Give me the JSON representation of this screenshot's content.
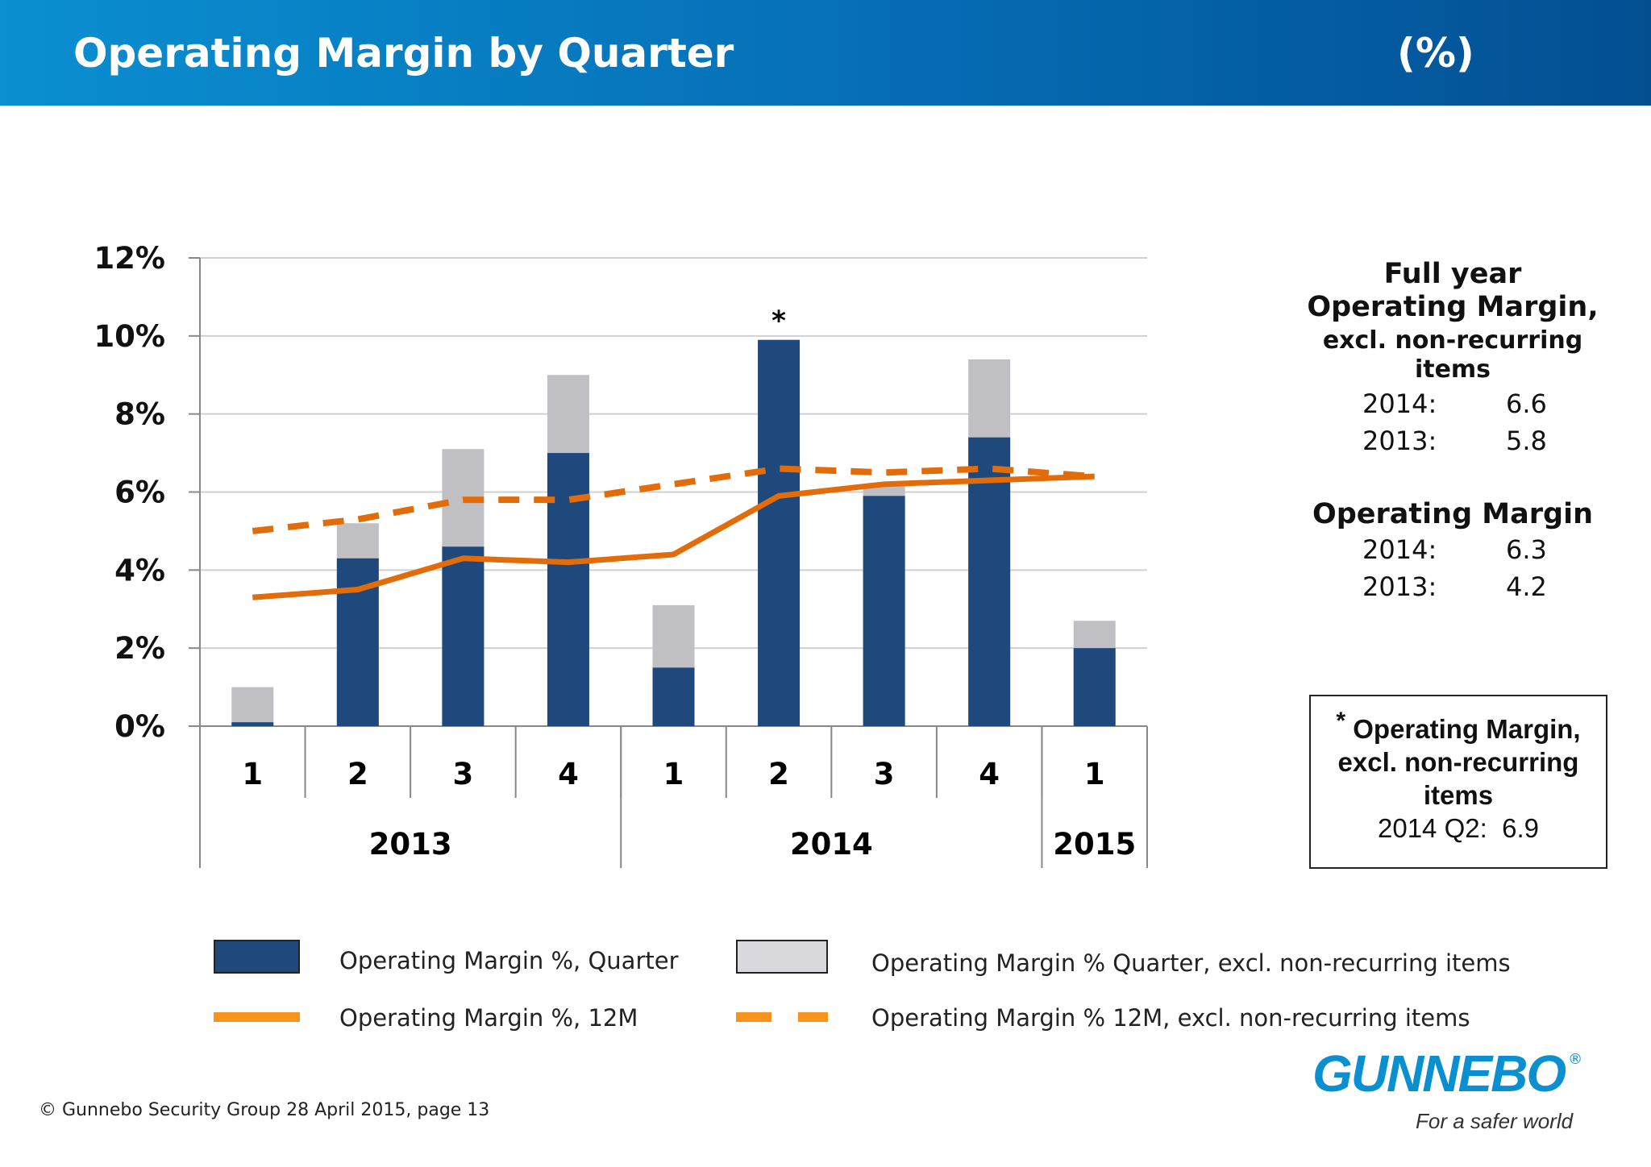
{
  "header": {
    "title": "Operating Margin by Quarter",
    "unit": "(%)"
  },
  "colors": {
    "quarter": "#1f497d",
    "quarter_excl": "#c0bfc3",
    "line_12m": "#e36c0a",
    "header": "#0670b8",
    "logo": "#0a8fd0"
  },
  "chart_data": {
    "type": "bar",
    "title": "",
    "ylabel": "",
    "xlabel": "",
    "ylim": [
      0,
      12
    ],
    "yticks": [
      "0%",
      "2%",
      "4%",
      "6%",
      "8%",
      "10%",
      "12%"
    ],
    "grid": true,
    "categories": [
      "1",
      "2",
      "3",
      "4",
      "1",
      "2",
      "3",
      "4",
      "1"
    ],
    "year_groups": [
      {
        "label": "2013",
        "count": 4
      },
      {
        "label": "2014",
        "count": 4
      },
      {
        "label": "2015",
        "count": 1
      }
    ],
    "annotation": {
      "category_index": 5,
      "text": "*"
    },
    "series": [
      {
        "name": "Operating Margin %, Quarter",
        "type": "bar",
        "values": [
          0.1,
          4.3,
          4.6,
          7.0,
          1.5,
          9.9,
          5.9,
          7.4,
          2.0
        ]
      },
      {
        "name": "Operating Margin % Quarter, excl. non-recurring items",
        "type": "bar",
        "values": [
          1.0,
          5.2,
          7.1,
          9.0,
          3.1,
          6.9,
          6.2,
          9.4,
          2.7
        ]
      },
      {
        "name": "Operating Margin %, 12M",
        "type": "line",
        "values": [
          3.3,
          3.5,
          4.3,
          4.2,
          4.4,
          5.9,
          6.2,
          6.3,
          6.4
        ]
      },
      {
        "name": "Operating Margin % 12M, excl. non-recurring items",
        "type": "line-dashed",
        "values": [
          5.0,
          5.3,
          5.8,
          5.8,
          6.2,
          6.6,
          6.5,
          6.6,
          6.4
        ]
      }
    ],
    "legend": "bottom"
  },
  "side": {
    "fy_heading": [
      "Full year",
      "Operating Margin,"
    ],
    "fy_sub": [
      "excl. non-recurring",
      "items"
    ],
    "fy_rows": [
      {
        "label": "2014:",
        "value": "6.6"
      },
      {
        "label": "2013:",
        "value": "5.8"
      }
    ],
    "om_heading": "Operating Margin",
    "om_rows": [
      {
        "label": "2014:",
        "value": "6.3"
      },
      {
        "label": "2013:",
        "value": "4.2"
      }
    ],
    "note": {
      "star": "*",
      "lines": [
        "Operating Margin,",
        "excl. non-recurring",
        "items"
      ],
      "label": "2014 Q2:",
      "value": "6.9"
    }
  },
  "footer": "© Gunnebo Security Group 28 April 2015, page 13",
  "logo": {
    "word": "GUNNEBO",
    "reg": "®",
    "tagline": "For a safer world"
  }
}
